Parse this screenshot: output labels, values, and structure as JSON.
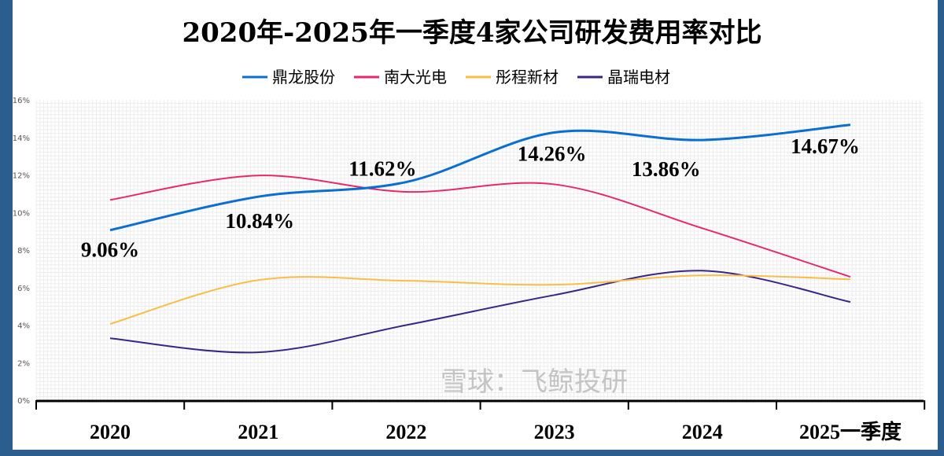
{
  "chart_data": {
    "type": "line",
    "title": "2020年-2025年一季度4家公司研发费用率对比",
    "categories": [
      "2020",
      "2021",
      "2022",
      "2023",
      "2024",
      "2025一季度"
    ],
    "ylim": [
      0,
      16
    ],
    "yticks": [
      "0%",
      "2%",
      "4%",
      "6%",
      "8%",
      "10%",
      "12%",
      "14%",
      "16%"
    ],
    "grid": true,
    "legend": "top",
    "series": [
      {
        "name": "鼎龙股份",
        "color": "#0a6fd0",
        "values": [
          9.06,
          10.84,
          11.62,
          14.26,
          13.86,
          14.67
        ],
        "labels": [
          "9.06%",
          "10.84%",
          "11.62%",
          "14.26%",
          "13.86%",
          "14.67%"
        ]
      },
      {
        "name": "南大光电",
        "color": "#e8286e",
        "values": [
          10.67,
          11.97,
          11.1,
          11.5,
          9.16,
          6.57
        ]
      },
      {
        "name": "彤程新材",
        "color": "#fbbd4a",
        "values": [
          4.06,
          6.4,
          6.36,
          6.15,
          6.65,
          6.44
        ]
      },
      {
        "name": "晶瑞电材",
        "color": "#3a2486",
        "values": [
          3.3,
          2.55,
          4.0,
          5.6,
          6.9,
          5.23
        ]
      }
    ]
  },
  "watermark": "雪球：飞鲸投研"
}
